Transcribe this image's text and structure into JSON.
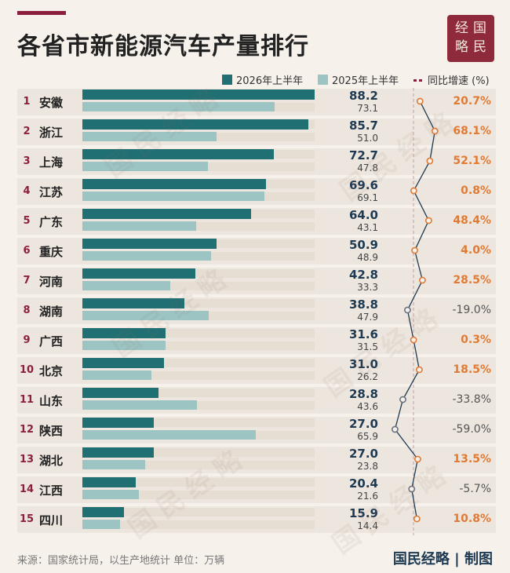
{
  "title": "各省市新能源汽车产量排行",
  "seal": [
    "经",
    "国",
    "略",
    "民"
  ],
  "legend": {
    "series1": "2026年上半年",
    "series2": "2025年上半年",
    "growth": "同比增速 (%)"
  },
  "colors": {
    "series1": "#1f6f73",
    "series2": "#9cc4c3",
    "accent": "#8c1f3d",
    "positive": "#e07a35",
    "negative": "#555555"
  },
  "watermark": "国民经略",
  "chart_data": {
    "type": "bar",
    "categories": [
      "安徽",
      "浙江",
      "上海",
      "江苏",
      "广东",
      "重庆",
      "河南",
      "湖南",
      "广西",
      "北京",
      "山东",
      "陕西",
      "湖北",
      "江西",
      "四川"
    ],
    "series": [
      {
        "name": "2026年上半年",
        "values": [
          88.2,
          85.7,
          72.7,
          69.6,
          64.0,
          50.9,
          42.8,
          38.8,
          31.6,
          31.0,
          28.8,
          27.0,
          27.0,
          20.4,
          15.9
        ]
      },
      {
        "name": "2025年上半年",
        "values": [
          73.1,
          51.0,
          47.8,
          69.1,
          43.1,
          48.9,
          33.3,
          47.9,
          31.5,
          26.2,
          43.6,
          65.9,
          23.8,
          21.6,
          14.4
        ]
      },
      {
        "name": "同比增速 (%)",
        "values": [
          20.7,
          68.1,
          52.1,
          0.8,
          48.4,
          4.0,
          28.5,
          -19.0,
          0.3,
          18.5,
          -33.8,
          -59.0,
          13.5,
          -5.7,
          10.8
        ]
      }
    ],
    "ranks": [
      "1",
      "2",
      "3",
      "4",
      "5",
      "6",
      "7",
      "8",
      "9",
      "10",
      "11",
      "12",
      "13",
      "14",
      "15"
    ],
    "labels1": [
      "88.2",
      "85.7",
      "72.7",
      "69.6",
      "64.0",
      "50.9",
      "42.8",
      "38.8",
      "31.6",
      "31.0",
      "28.8",
      "27.0",
      "27.0",
      "20.4",
      "15.9"
    ],
    "labels2": [
      "73.1",
      "51.0",
      "47.8",
      "69.1",
      "43.1",
      "48.9",
      "33.3",
      "47.9",
      "31.5",
      "26.2",
      "43.6",
      "65.9",
      "23.8",
      "21.6",
      "14.4"
    ],
    "growth_labels": [
      "20.7%",
      "68.1%",
      "52.1%",
      "0.8%",
      "48.4%",
      "4.0%",
      "28.5%",
      "-19.0%",
      "0.3%",
      "18.5%",
      "-33.8%",
      "-59.0%",
      "13.5%",
      "-5.7%",
      "10.8%"
    ],
    "legend_position": "top-right",
    "grid": false
  },
  "footer": {
    "source": "来源：国家统计局，以生产地统计  单位：万辆",
    "brand": "国民经略 | 制图"
  }
}
